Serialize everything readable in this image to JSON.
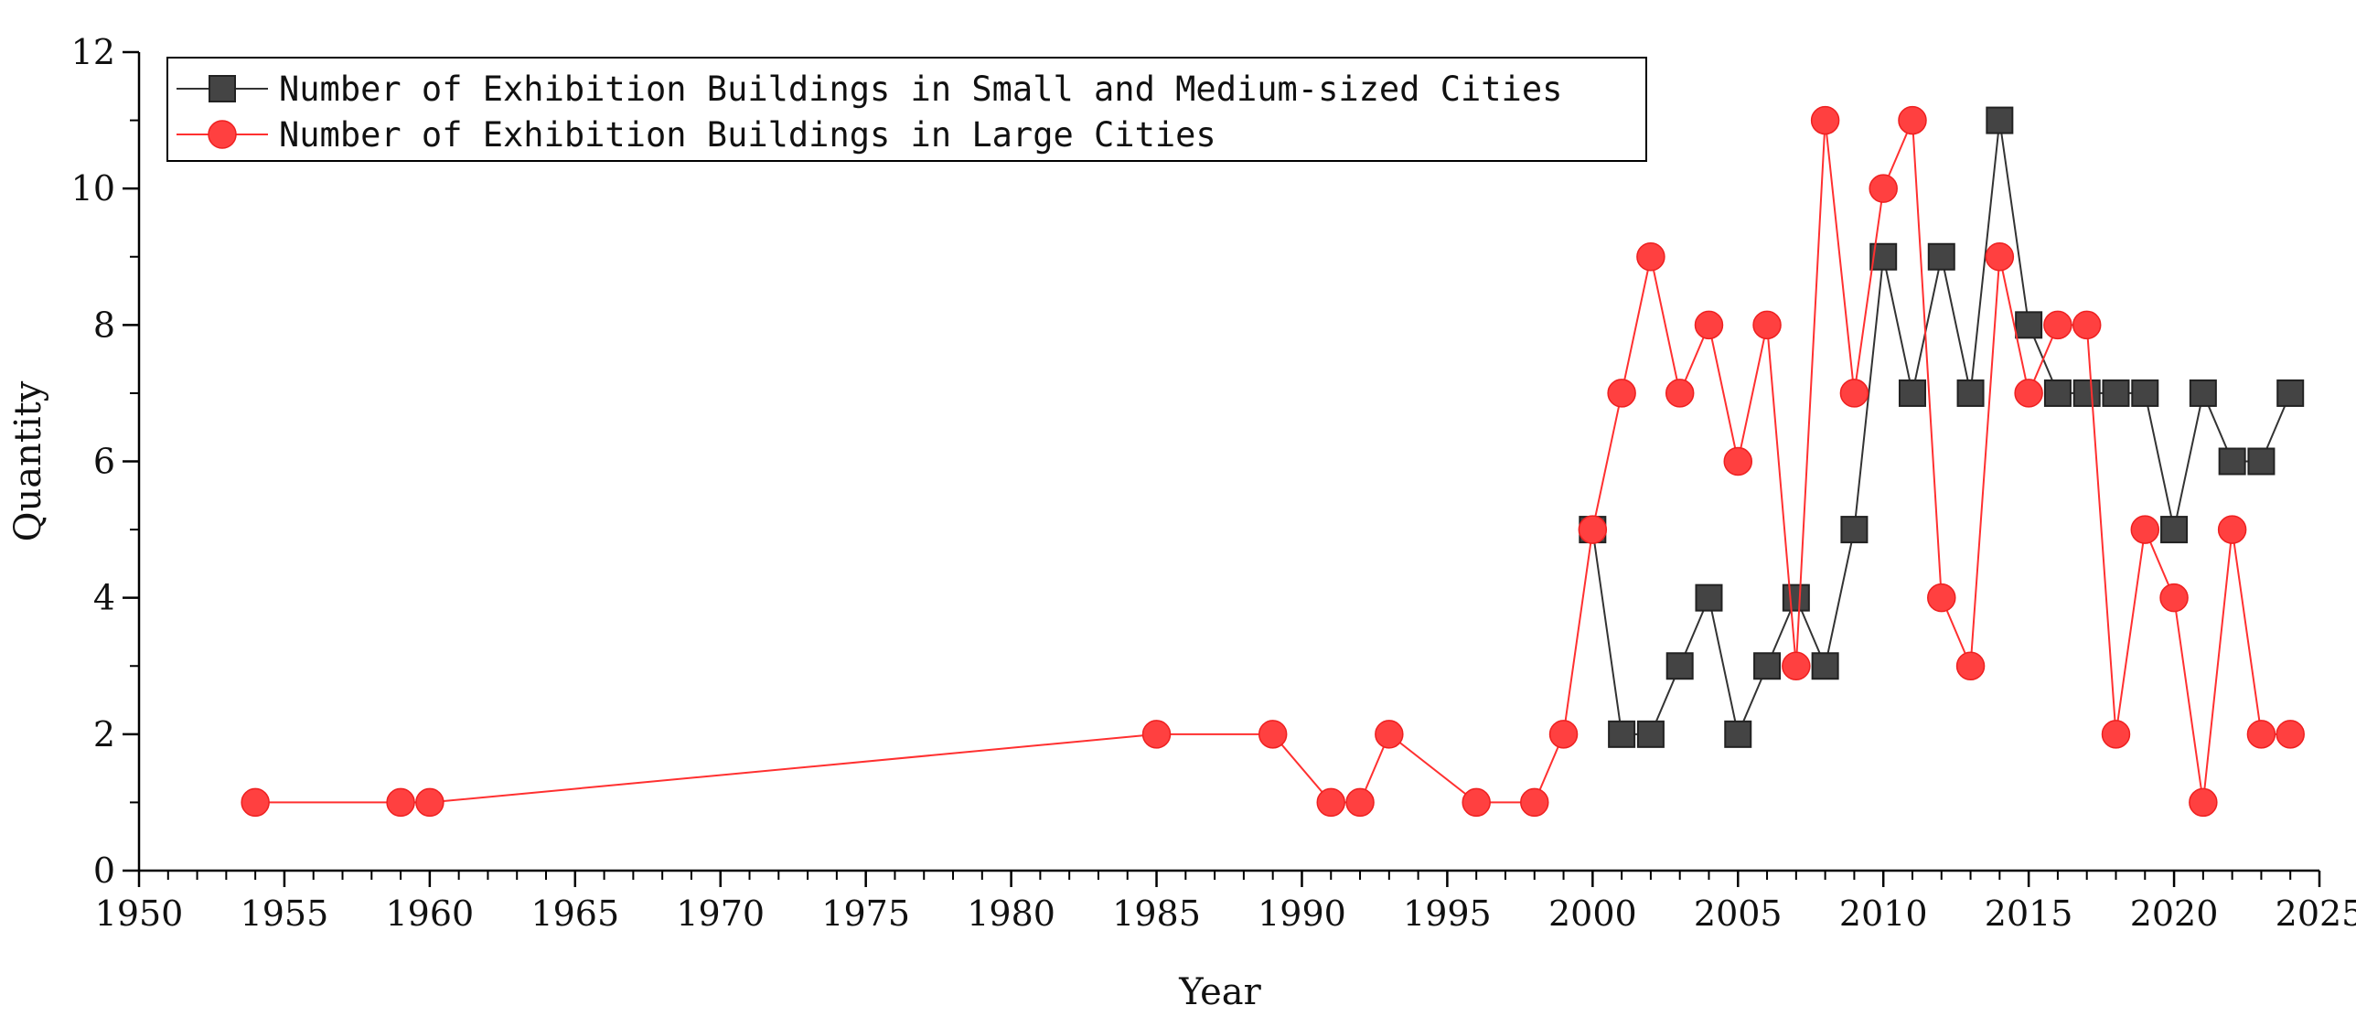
{
  "chart_data": {
    "type": "line",
    "title": "",
    "xlabel": "Year",
    "ylabel": "Quantity",
    "xlim": [
      1950,
      2025
    ],
    "ylim": [
      0,
      12
    ],
    "xticks": [
      1950,
      1955,
      1960,
      1965,
      1970,
      1975,
      1980,
      1985,
      1990,
      1995,
      2000,
      2005,
      2010,
      2015,
      2020,
      2025
    ],
    "yticks": [
      0,
      2,
      4,
      6,
      8,
      10,
      12
    ],
    "grid": false,
    "legend_position": "top-left",
    "series": [
      {
        "name": "Number of Exhibition Buildings in Small and Medium-sized Cities",
        "marker": "square",
        "color": "#444444",
        "line_color": "#333333",
        "x": [
          2000,
          2001,
          2002,
          2003,
          2004,
          2005,
          2006,
          2007,
          2008,
          2009,
          2010,
          2011,
          2012,
          2013,
          2014,
          2015,
          2016,
          2017,
          2018,
          2019,
          2020,
          2021,
          2022,
          2023,
          2024
        ],
        "y": [
          5,
          2,
          2,
          3,
          4,
          2,
          3,
          4,
          3,
          5,
          9,
          7,
          9,
          7,
          11,
          8,
          7,
          7,
          7,
          7,
          5,
          7,
          6,
          6,
          7
        ]
      },
      {
        "name": "Number of Exhibition Buildings in Large Cities",
        "marker": "circle",
        "color": "#ff4040",
        "line_color": "#ff3030",
        "x": [
          1954,
          1959,
          1960,
          1985,
          1989,
          1991,
          1992,
          1993,
          1996,
          1998,
          1999,
          2000,
          2001,
          2002,
          2003,
          2004,
          2005,
          2006,
          2007,
          2008,
          2009,
          2010,
          2011,
          2012,
          2013,
          2014,
          2015,
          2016,
          2017,
          2018,
          2019,
          2020,
          2021,
          2022,
          2023,
          2024
        ],
        "y": [
          1,
          1,
          1,
          2,
          2,
          1,
          1,
          2,
          1,
          1,
          2,
          5,
          7,
          9,
          7,
          8,
          6,
          8,
          3,
          11,
          7,
          10,
          11,
          4,
          3,
          9,
          7,
          8,
          8,
          2,
          5,
          4,
          1,
          5,
          2,
          2
        ]
      }
    ]
  }
}
